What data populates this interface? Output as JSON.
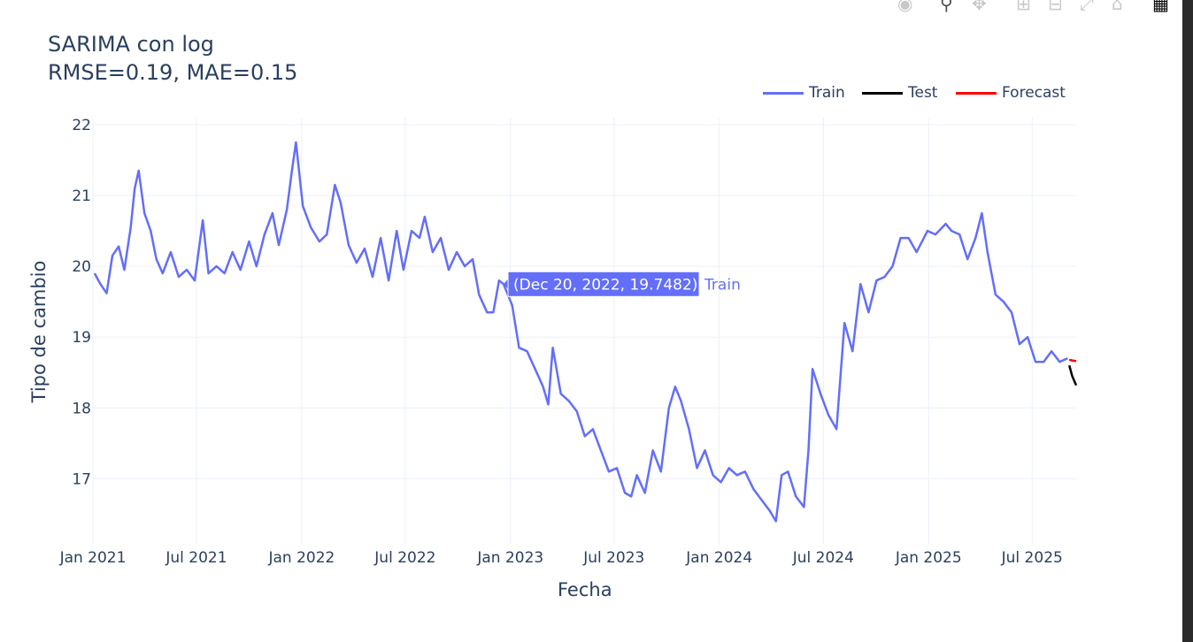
{
  "modebar": {
    "icons": [
      "camera-icon",
      "zoom-icon",
      "pan-icon",
      "zoom-in-icon",
      "zoom-out-icon",
      "autoscale-icon",
      "reset-axes-icon",
      "plotly-logo-icon"
    ]
  },
  "chart_data": {
    "type": "line",
    "title": "SARIMA con log",
    "subtitle": "RMSE=0.19, MAE=0.15",
    "xlabel": "Fecha",
    "ylabel": "Tipo de cambio",
    "x_range": [
      "2021-01-01",
      "2025-09-16"
    ],
    "ylim": [
      16.08,
      22.1
    ],
    "x_ticks": [
      {
        "date": "2021-01-01",
        "label": "Jan 2021"
      },
      {
        "date": "2021-07-01",
        "label": "Jul 2021"
      },
      {
        "date": "2022-01-01",
        "label": "Jan 2022"
      },
      {
        "date": "2022-07-01",
        "label": "Jul 2022"
      },
      {
        "date": "2023-01-01",
        "label": "Jan 2023"
      },
      {
        "date": "2023-07-01",
        "label": "Jul 2023"
      },
      {
        "date": "2024-01-01",
        "label": "Jan 2024"
      },
      {
        "date": "2024-07-01",
        "label": "Jul 2024"
      },
      {
        "date": "2025-01-01",
        "label": "Jan 2025"
      },
      {
        "date": "2025-07-01",
        "label": "Jul 2025"
      }
    ],
    "y_ticks": [
      17,
      18,
      19,
      20,
      21,
      22
    ],
    "grid": true,
    "legend": {
      "position": "top-right",
      "orientation": "horizontal"
    },
    "series": [
      {
        "name": "Train",
        "color": "#636efa",
        "points": [
          [
            "2021-01-04",
            19.9
          ],
          [
            "2021-01-14",
            19.75
          ],
          [
            "2021-01-25",
            19.62
          ],
          [
            "2021-02-04",
            20.15
          ],
          [
            "2021-02-15",
            20.28
          ],
          [
            "2021-02-25",
            19.95
          ],
          [
            "2021-03-08",
            20.55
          ],
          [
            "2021-03-15",
            21.1
          ],
          [
            "2021-03-22",
            21.35
          ],
          [
            "2021-04-01",
            20.75
          ],
          [
            "2021-04-12",
            20.5
          ],
          [
            "2021-04-22",
            20.1
          ],
          [
            "2021-05-03",
            19.9
          ],
          [
            "2021-05-17",
            20.2
          ],
          [
            "2021-05-31",
            19.85
          ],
          [
            "2021-06-14",
            19.95
          ],
          [
            "2021-06-28",
            19.8
          ],
          [
            "2021-07-12",
            20.65
          ],
          [
            "2021-07-22",
            19.9
          ],
          [
            "2021-08-05",
            20.0
          ],
          [
            "2021-08-19",
            19.9
          ],
          [
            "2021-09-02",
            20.2
          ],
          [
            "2021-09-16",
            19.95
          ],
          [
            "2021-10-01",
            20.35
          ],
          [
            "2021-10-14",
            20.0
          ],
          [
            "2021-10-28",
            20.45
          ],
          [
            "2021-11-11",
            20.75
          ],
          [
            "2021-11-22",
            20.3
          ],
          [
            "2021-12-06",
            20.8
          ],
          [
            "2021-12-14",
            21.3
          ],
          [
            "2021-12-22",
            21.75
          ],
          [
            "2022-01-03",
            20.85
          ],
          [
            "2022-01-17",
            20.55
          ],
          [
            "2022-02-01",
            20.35
          ],
          [
            "2022-02-14",
            20.45
          ],
          [
            "2022-02-28",
            21.15
          ],
          [
            "2022-03-10",
            20.9
          ],
          [
            "2022-03-24",
            20.3
          ],
          [
            "2022-04-07",
            20.05
          ],
          [
            "2022-04-21",
            20.25
          ],
          [
            "2022-05-05",
            19.85
          ],
          [
            "2022-05-19",
            20.4
          ],
          [
            "2022-06-02",
            19.8
          ],
          [
            "2022-06-16",
            20.5
          ],
          [
            "2022-06-28",
            19.95
          ],
          [
            "2022-07-12",
            20.5
          ],
          [
            "2022-07-26",
            20.4
          ],
          [
            "2022-08-04",
            20.7
          ],
          [
            "2022-08-18",
            20.2
          ],
          [
            "2022-09-01",
            20.4
          ],
          [
            "2022-09-15",
            19.95
          ],
          [
            "2022-09-29",
            20.2
          ],
          [
            "2022-10-13",
            20.0
          ],
          [
            "2022-10-27",
            20.1
          ],
          [
            "2022-11-07",
            19.6
          ],
          [
            "2022-11-21",
            19.35
          ],
          [
            "2022-12-02",
            19.35
          ],
          [
            "2022-12-12",
            19.8
          ],
          [
            "2022-12-20",
            19.7482
          ],
          [
            "2023-01-04",
            19.45
          ],
          [
            "2023-01-16",
            18.85
          ],
          [
            "2023-01-30",
            18.8
          ],
          [
            "2023-02-13",
            18.55
          ],
          [
            "2023-02-27",
            18.3
          ],
          [
            "2023-03-08",
            18.05
          ],
          [
            "2023-03-16",
            18.85
          ],
          [
            "2023-03-30",
            18.2
          ],
          [
            "2023-04-13",
            18.1
          ],
          [
            "2023-04-27",
            17.95
          ],
          [
            "2023-05-11",
            17.6
          ],
          [
            "2023-05-25",
            17.7
          ],
          [
            "2023-06-08",
            17.4
          ],
          [
            "2023-06-22",
            17.1
          ],
          [
            "2023-07-06",
            17.15
          ],
          [
            "2023-07-20",
            16.8
          ],
          [
            "2023-07-31",
            16.75
          ],
          [
            "2023-08-10",
            17.05
          ],
          [
            "2023-08-24",
            16.8
          ],
          [
            "2023-09-07",
            17.4
          ],
          [
            "2023-09-21",
            17.1
          ],
          [
            "2023-10-05",
            18.0
          ],
          [
            "2023-10-16",
            18.3
          ],
          [
            "2023-10-26",
            18.1
          ],
          [
            "2023-11-09",
            17.7
          ],
          [
            "2023-11-23",
            17.15
          ],
          [
            "2023-12-07",
            17.4
          ],
          [
            "2023-12-21",
            17.05
          ],
          [
            "2024-01-04",
            16.95
          ],
          [
            "2024-01-18",
            17.15
          ],
          [
            "2024-02-01",
            17.05
          ],
          [
            "2024-02-15",
            17.1
          ],
          [
            "2024-03-01",
            16.85
          ],
          [
            "2024-03-15",
            16.7
          ],
          [
            "2024-03-29",
            16.55
          ],
          [
            "2024-04-09",
            16.4
          ],
          [
            "2024-04-19",
            17.05
          ],
          [
            "2024-04-30",
            17.1
          ],
          [
            "2024-05-14",
            16.75
          ],
          [
            "2024-05-28",
            16.6
          ],
          [
            "2024-06-05",
            17.4
          ],
          [
            "2024-06-12",
            18.55
          ],
          [
            "2024-06-26",
            18.2
          ],
          [
            "2024-07-10",
            17.9
          ],
          [
            "2024-07-24",
            17.7
          ],
          [
            "2024-08-07",
            19.2
          ],
          [
            "2024-08-21",
            18.8
          ],
          [
            "2024-09-04",
            19.75
          ],
          [
            "2024-09-18",
            19.35
          ],
          [
            "2024-10-02",
            19.8
          ],
          [
            "2024-10-16",
            19.85
          ],
          [
            "2024-10-30",
            20.0
          ],
          [
            "2024-11-13",
            20.4
          ],
          [
            "2024-11-27",
            20.4
          ],
          [
            "2024-12-11",
            20.2
          ],
          [
            "2024-12-30",
            20.5
          ],
          [
            "2025-01-13",
            20.45
          ],
          [
            "2025-01-31",
            20.6
          ],
          [
            "2025-02-10",
            20.5
          ],
          [
            "2025-02-24",
            20.45
          ],
          [
            "2025-03-10",
            20.1
          ],
          [
            "2025-03-24",
            20.4
          ],
          [
            "2025-04-04",
            20.75
          ],
          [
            "2025-04-14",
            20.2
          ],
          [
            "2025-04-28",
            19.6
          ],
          [
            "2025-05-12",
            19.5
          ],
          [
            "2025-05-26",
            19.35
          ],
          [
            "2025-06-09",
            18.9
          ],
          [
            "2025-06-23",
            19.0
          ],
          [
            "2025-07-07",
            18.65
          ],
          [
            "2025-07-21",
            18.65
          ],
          [
            "2025-08-04",
            18.8
          ],
          [
            "2025-08-18",
            18.65
          ],
          [
            "2025-09-01",
            18.7
          ]
        ]
      },
      {
        "name": "Test",
        "color": "#000000",
        "points": [
          [
            "2025-09-04",
            18.6
          ],
          [
            "2025-09-09",
            18.45
          ],
          [
            "2025-09-16",
            18.32
          ]
        ]
      },
      {
        "name": "Forecast",
        "color": "#ff0000",
        "points": [
          [
            "2025-09-04",
            18.68
          ],
          [
            "2025-09-09",
            18.67
          ],
          [
            "2025-09-16",
            18.66
          ]
        ]
      }
    ],
    "hover": {
      "label": "(Dec 20, 2022, 19.7482)",
      "series": "Train",
      "x": "2022-12-20",
      "y": 19.7482
    }
  }
}
